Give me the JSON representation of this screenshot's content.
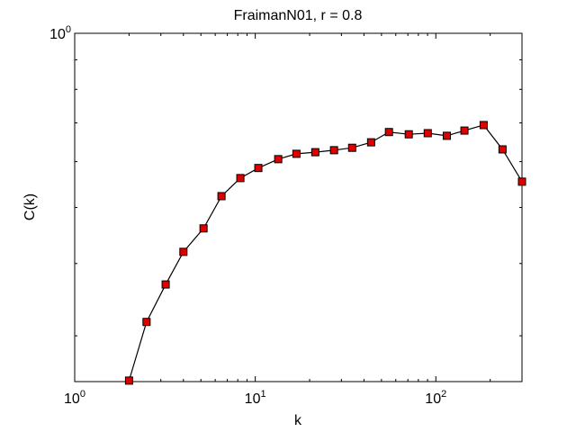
{
  "chart_data": {
    "type": "line",
    "title": "FraimanN01, r = 0.8",
    "x_label": "k",
    "y_label": "C(k)",
    "x_scale": "log",
    "y_scale": "log",
    "xlim": [
      1,
      300
    ],
    "ylim": [
      0.25,
      1
    ],
    "xticks": [
      {
        "value": 1,
        "label": "10^0"
      },
      {
        "value": 10,
        "label": "10^1"
      },
      {
        "value": 100,
        "label": "10^2"
      }
    ],
    "yticks": [
      {
        "value": 1,
        "label": "10^0"
      }
    ],
    "xminorticks": [
      2,
      3,
      4,
      5,
      6,
      7,
      8,
      9,
      20,
      30,
      40,
      50,
      60,
      70,
      80,
      90,
      200
    ],
    "yminorticks": [
      0.3,
      0.4,
      0.5,
      0.6,
      0.7,
      0.8,
      0.9
    ],
    "series": [
      {
        "color": "#000000",
        "marker_color": "#e00000",
        "x": [
          2,
          2.5,
          3.19,
          4.0,
          5.17,
          6.5,
          8.27,
          10.4,
          13.4,
          16.9,
          21.5,
          27.3,
          34.4,
          43.8,
          55.0,
          70.8,
          90.2,
          115,
          144,
          184,
          234,
          300
        ],
        "values": [
          0.251,
          0.317,
          0.368,
          0.419,
          0.46,
          0.523,
          0.562,
          0.585,
          0.606,
          0.619,
          0.623,
          0.628,
          0.634,
          0.648,
          0.675,
          0.669,
          0.672,
          0.665,
          0.679,
          0.694,
          0.63,
          0.554
        ]
      }
    ]
  }
}
